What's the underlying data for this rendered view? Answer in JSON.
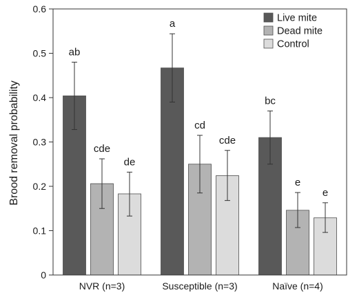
{
  "chart_data": {
    "type": "bar",
    "ylabel": "Brood removal probability",
    "ylim": [
      0,
      0.6
    ],
    "yticks": [
      0,
      0.1,
      0.2,
      0.3,
      0.4,
      0.5,
      0.6
    ],
    "ytick_labels": [
      "0",
      "0.1",
      "0.2",
      "0.3",
      "0.4",
      "0.5",
      "0.6"
    ],
    "categories": [
      "NVR (n=3)",
      "Susceptible (n=3)",
      "Naïve (n=4)"
    ],
    "legend_position": "top-right",
    "grid": false,
    "series": [
      {
        "name": "Live mite",
        "color": "#595959",
        "values": [
          0.404,
          0.467,
          0.31
        ],
        "err_low": [
          0.328,
          0.39,
          0.25
        ],
        "err_high": [
          0.48,
          0.544,
          0.37
        ],
        "labels": [
          "ab",
          "a",
          "bc"
        ]
      },
      {
        "name": "Dead mite",
        "color": "#b3b3b3",
        "values": [
          0.206,
          0.25,
          0.146
        ],
        "err_low": [
          0.15,
          0.185,
          0.107
        ],
        "err_high": [
          0.262,
          0.315,
          0.186
        ],
        "labels": [
          "cde",
          "cd",
          "e"
        ]
      },
      {
        "name": "Control",
        "color": "#dcdcdc",
        "values": [
          0.183,
          0.224,
          0.129
        ],
        "err_low": [
          0.133,
          0.168,
          0.096
        ],
        "err_high": [
          0.232,
          0.281,
          0.163
        ],
        "labels": [
          "de",
          "cde",
          "e"
        ]
      }
    ]
  }
}
